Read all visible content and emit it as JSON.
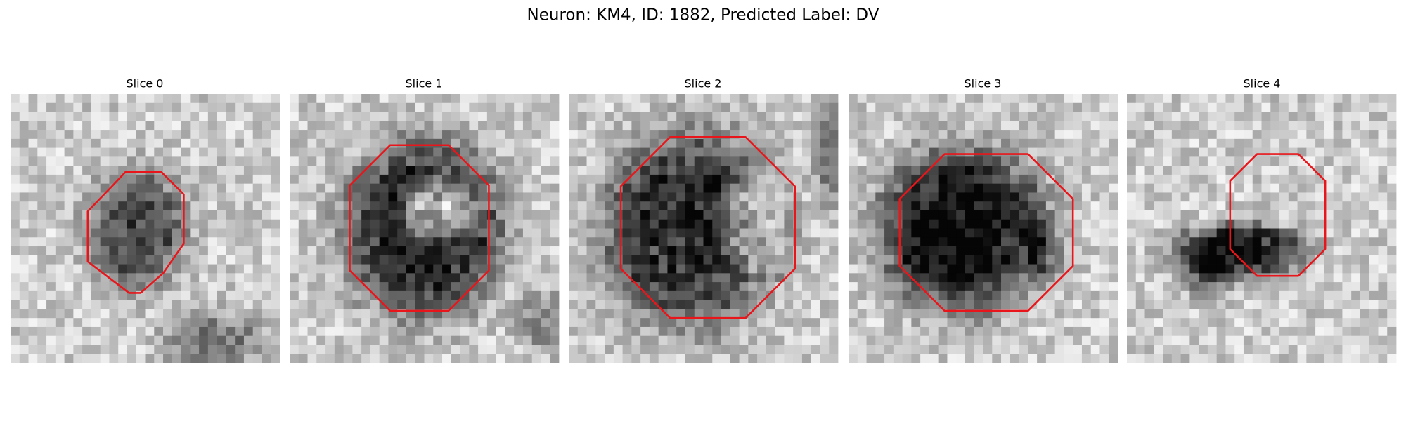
{
  "title": "Neuron: KM4, ID: 1882, Predicted Label: DV",
  "panels": [
    {
      "label": "Slice 0"
    },
    {
      "label": "Slice 1"
    },
    {
      "label": "Slice 2"
    },
    {
      "label": "Slice 3"
    },
    {
      "label": "Slice 4"
    }
  ]
}
